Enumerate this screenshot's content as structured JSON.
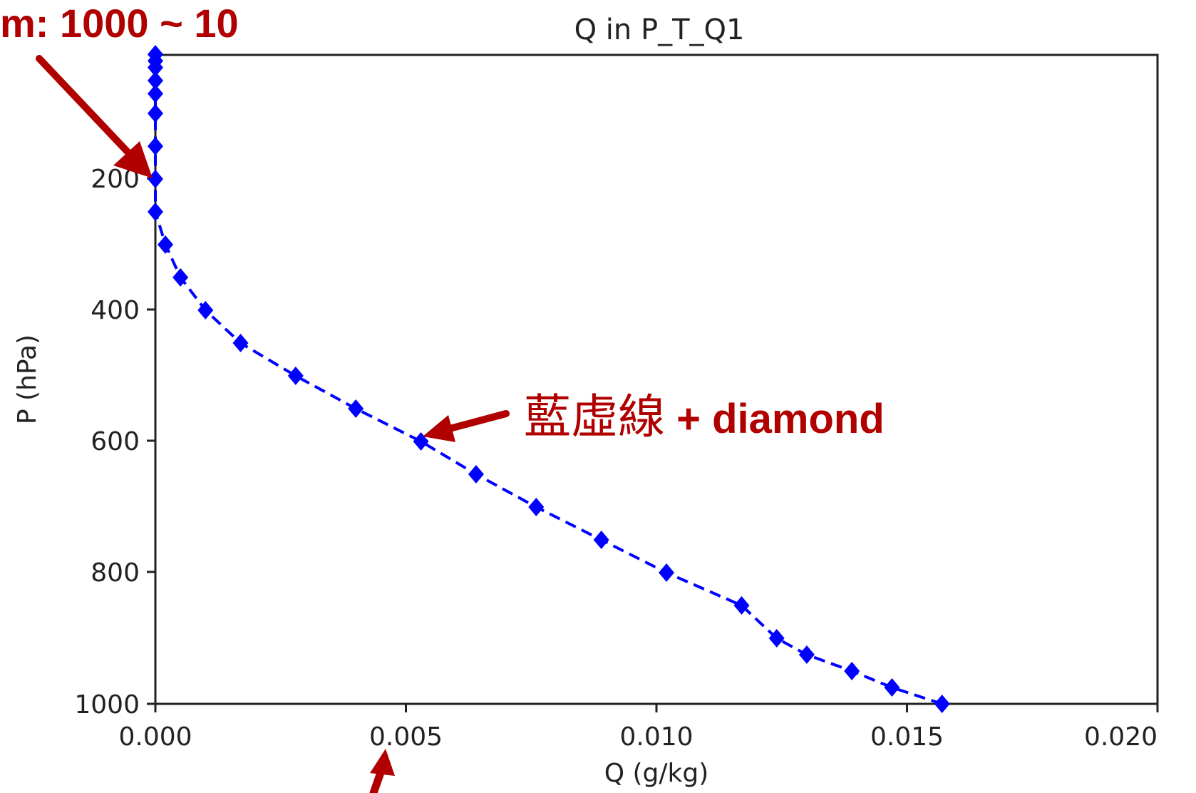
{
  "chart_data": {
    "type": "line",
    "title": "Q in P_T_Q1",
    "xlabel": "Q (g/kg)",
    "ylabel": "P (hPa)",
    "xlim": [
      0.0,
      0.02
    ],
    "ylim": [
      1000,
      10
    ],
    "y_inverted": true,
    "x_ticks": [
      "0.000",
      "0.005",
      "0.010",
      "0.015",
      "0.020"
    ],
    "y_ticks": [
      "200",
      "400",
      "600",
      "800",
      "1000"
    ],
    "grid": false,
    "series": [
      {
        "style": "dashed",
        "marker": "diamond",
        "color": "#0000ff",
        "x": [
          0.0157,
          0.0147,
          0.0139,
          0.013,
          0.0124,
          0.0117,
          0.0102,
          0.0089,
          0.0076,
          0.0064,
          0.0053,
          0.004,
          0.0028,
          0.0017,
          0.001,
          0.0005,
          0.0002,
          0.0,
          0.0,
          0.0,
          0.0,
          0.0,
          0.0,
          0.0,
          0.0,
          0.0,
          0.0
        ],
        "y": [
          1000,
          975,
          950,
          925,
          900,
          850,
          800,
          750,
          700,
          650,
          600,
          550,
          500,
          450,
          400,
          350,
          300,
          250,
          200,
          150,
          100,
          70,
          50,
          30,
          20,
          10,
          10
        ]
      }
    ],
    "annotations": [
      {
        "text": "m: 1000 ~ 10"
      },
      {
        "text_cjk": "藍虛線",
        "text": " + diamond"
      }
    ]
  },
  "colors": {
    "series": "#0000ff",
    "annotation": "#b00000",
    "axis": "#222222"
  }
}
